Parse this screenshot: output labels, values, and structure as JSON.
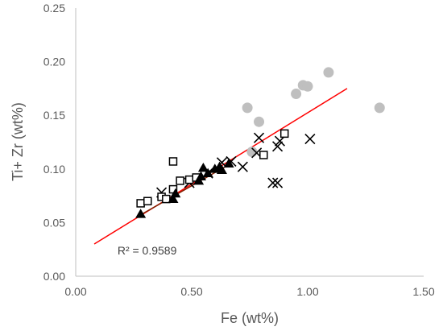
{
  "chart_data": {
    "type": "scatter",
    "title": "",
    "xlabel": "Fe (wt%)",
    "ylabel": "Ti+ Zr (wt%)",
    "xlim": [
      0,
      1.5
    ],
    "ylim": [
      0,
      0.25
    ],
    "x_ticks": [
      "0.00",
      "0.50",
      "1.00",
      "1.50"
    ],
    "y_ticks": [
      "0.00",
      "0.05",
      "0.10",
      "0.15",
      "0.20",
      "0.25"
    ],
    "grid": false,
    "legend": "none",
    "series": [
      {
        "marker": "circle",
        "color": "#bfbfbf",
        "points": [
          {
            "x": 0.74,
            "y": 0.157
          },
          {
            "x": 0.79,
            "y": 0.144
          },
          {
            "x": 0.95,
            "y": 0.17
          },
          {
            "x": 0.98,
            "y": 0.178
          },
          {
            "x": 1.0,
            "y": 0.177
          },
          {
            "x": 1.09,
            "y": 0.19
          },
          {
            "x": 1.31,
            "y": 0.157
          },
          {
            "x": 0.76,
            "y": 0.116
          }
        ]
      },
      {
        "marker": "x",
        "color": "#000000",
        "points": [
          {
            "x": 0.37,
            "y": 0.078
          },
          {
            "x": 0.49,
            "y": 0.087
          },
          {
            "x": 0.57,
            "y": 0.096
          },
          {
            "x": 0.63,
            "y": 0.106
          },
          {
            "x": 0.67,
            "y": 0.107
          },
          {
            "x": 0.72,
            "y": 0.102
          },
          {
            "x": 0.78,
            "y": 0.115
          },
          {
            "x": 0.79,
            "y": 0.129
          },
          {
            "x": 0.85,
            "y": 0.087
          },
          {
            "x": 0.87,
            "y": 0.087
          },
          {
            "x": 0.87,
            "y": 0.121
          },
          {
            "x": 0.88,
            "y": 0.126
          },
          {
            "x": 1.01,
            "y": 0.128
          }
        ]
      },
      {
        "marker": "square",
        "color": "#000000",
        "points": [
          {
            "x": 0.28,
            "y": 0.068
          },
          {
            "x": 0.31,
            "y": 0.07
          },
          {
            "x": 0.37,
            "y": 0.074
          },
          {
            "x": 0.39,
            "y": 0.072
          },
          {
            "x": 0.42,
            "y": 0.081
          },
          {
            "x": 0.42,
            "y": 0.107
          },
          {
            "x": 0.45,
            "y": 0.089
          },
          {
            "x": 0.49,
            "y": 0.09
          },
          {
            "x": 0.52,
            "y": 0.092
          },
          {
            "x": 0.81,
            "y": 0.113
          },
          {
            "x": 0.9,
            "y": 0.133
          }
        ]
      },
      {
        "marker": "triangle",
        "color": "#000000",
        "points": [
          {
            "x": 0.28,
            "y": 0.058
          },
          {
            "x": 0.42,
            "y": 0.072
          },
          {
            "x": 0.43,
            "y": 0.077
          },
          {
            "x": 0.53,
            "y": 0.089
          },
          {
            "x": 0.54,
            "y": 0.093
          },
          {
            "x": 0.55,
            "y": 0.101
          },
          {
            "x": 0.57,
            "y": 0.096
          },
          {
            "x": 0.6,
            "y": 0.1
          },
          {
            "x": 0.62,
            "y": 0.102
          },
          {
            "x": 0.63,
            "y": 0.099
          },
          {
            "x": 0.66,
            "y": 0.105
          }
        ]
      }
    ],
    "trendlines": [
      {
        "name": "trend-all",
        "color": "#ff0000",
        "x": [
          0.08,
          1.17
        ],
        "y": [
          0.03,
          0.175
        ]
      },
      {
        "name": "trend-triangles",
        "color": "#7f1f00",
        "x": [
          0.27,
          0.66
        ],
        "y": [
          0.056,
          0.104
        ]
      }
    ],
    "annotations": [
      {
        "text": "R² = 0.9589",
        "x": 0.18,
        "y": 0.024
      }
    ]
  }
}
